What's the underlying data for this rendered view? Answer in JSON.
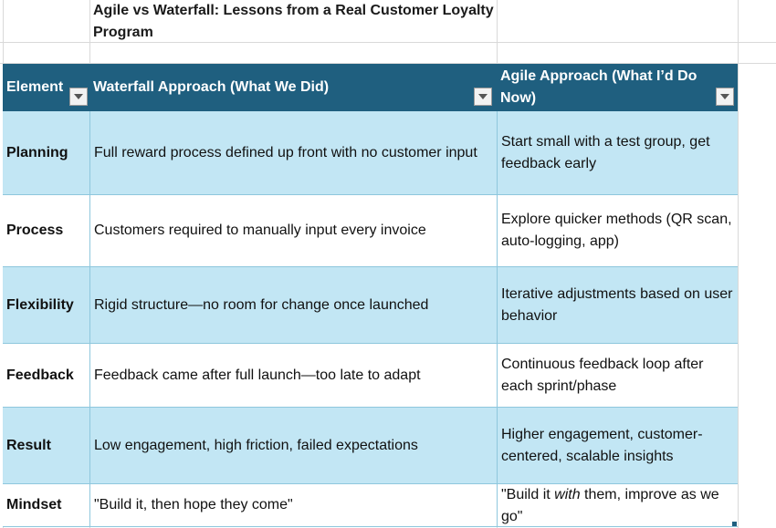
{
  "title": "Agile vs Waterfall: Lessons from a Real Customer Loyalty Program",
  "headers": {
    "element": "Element",
    "waterfall": "Waterfall Approach (What We Did)",
    "agile": "Agile Approach (What I’d Do Now)"
  },
  "rows": [
    {
      "element": "Planning",
      "waterfall": "Full reward process defined up front with no customer input",
      "agile": "Start small with a test group, get feedback early"
    },
    {
      "element": "Process",
      "waterfall": "Customers required to manually input every invoice",
      "agile": "Explore quicker methods (QR scan, auto-logging, app)"
    },
    {
      "element": "Flexibility",
      "waterfall": "Rigid structure—no room for change once launched",
      "agile": "Iterative adjustments based on user behavior"
    },
    {
      "element": "Feedback",
      "waterfall": "Feedback came after full launch—too late to adapt",
      "agile": "Continuous feedback loop after each sprint/phase"
    },
    {
      "element": "Result",
      "waterfall": "Low engagement, high friction, failed expectations",
      "agile": "Higher engagement, customer-centered, scalable insights"
    },
    {
      "element": "Mindset",
      "waterfall": "\"Build it, then hope they come\"",
      "agile_before": "\"Build it ",
      "agile_em": "with",
      "agile_after": "  them, improve as we go\""
    }
  ],
  "colors": {
    "header_bg": "#1f5f7f",
    "band_blue": "#c2e6f4",
    "band_white": "#ffffff"
  }
}
